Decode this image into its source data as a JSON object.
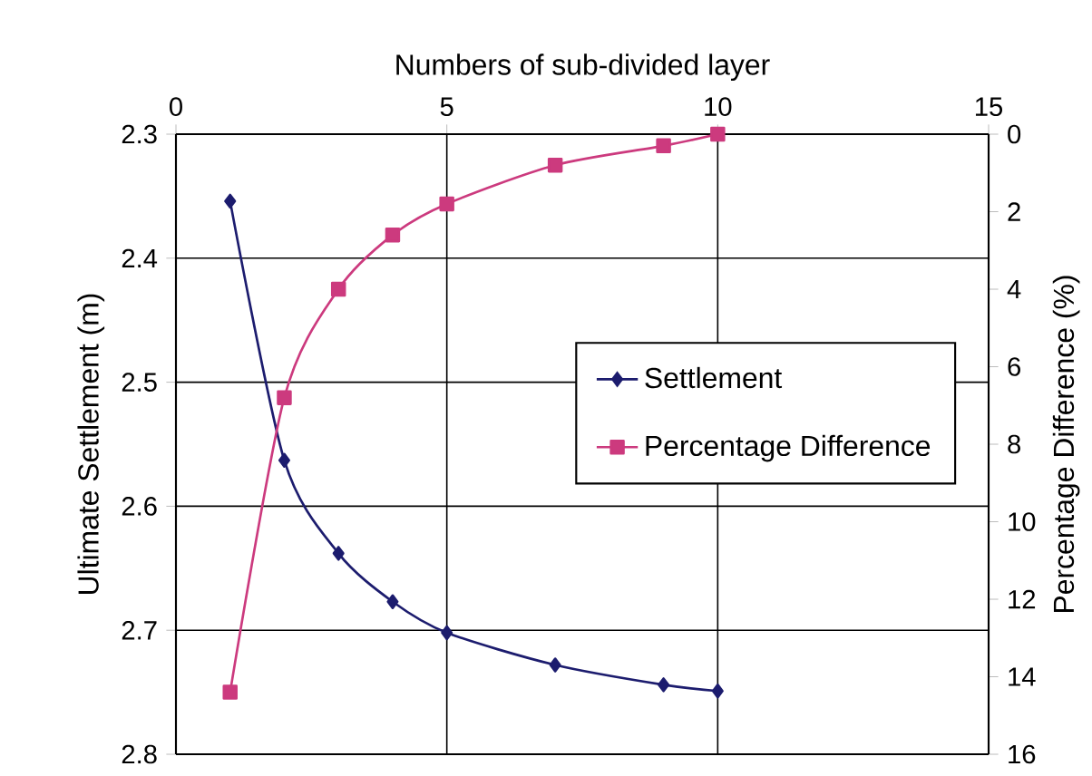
{
  "chart_data": {
    "type": "line",
    "xlabel": "Numbers of sub-divided layer",
    "ylabel": "Ultimate Settlement (m)",
    "y2label": "Percentage Difference (%)",
    "xlim": [
      0,
      15
    ],
    "xticks": [
      0,
      5,
      10,
      15
    ],
    "ylim": [
      2.8,
      2.3
    ],
    "yticks": [
      2.3,
      2.4,
      2.5,
      2.6,
      2.7,
      2.8
    ],
    "y2lim": [
      16,
      0
    ],
    "y2ticks": [
      0,
      2,
      4,
      6,
      8,
      10,
      12,
      14,
      16
    ],
    "grid": true,
    "legend": "right",
    "series": [
      {
        "name": "Settlement",
        "color": "#1c1c6e",
        "marker": "diamond",
        "x": [
          1,
          2,
          3,
          4,
          5,
          7,
          9,
          10
        ],
        "values": [
          2.354,
          2.563,
          2.638,
          2.677,
          2.702,
          2.728,
          2.744,
          2.749
        ]
      },
      {
        "name": "Percentage Difference",
        "color": "#cc3a7e",
        "marker": "square",
        "axis": "y2",
        "x": [
          1,
          2,
          3,
          4,
          5,
          7,
          9,
          10
        ],
        "values": [
          14.4,
          6.8,
          4.0,
          2.6,
          1.8,
          0.8,
          0.3,
          0
        ]
      }
    ]
  }
}
